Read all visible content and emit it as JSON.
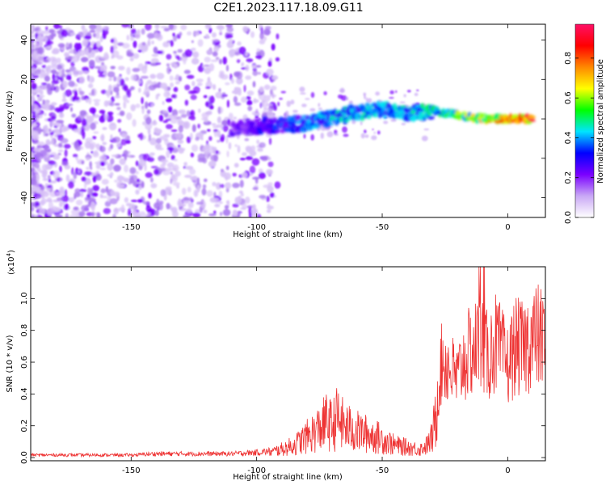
{
  "page": {
    "title": "C2E1.2023.117.18.09.G11"
  },
  "chart_data": [
    {
      "type": "heatmap",
      "title": "C2E1.2023.117.18.09.G11",
      "xlabel": "Height of straight line (km)",
      "ylabel": "Frequency (Hz)",
      "xlim": [
        -190,
        15
      ],
      "ylim": [
        -50,
        48
      ],
      "x_ticks": [
        -150,
        -100,
        -50,
        0
      ],
      "x_tick_labels": [
        "-150",
        "-100",
        "-50",
        "0"
      ],
      "y_ticks": [
        -40,
        -20,
        0,
        20,
        40
      ],
      "y_tick_labels": [
        "-40",
        "-20",
        "0",
        "20",
        "40"
      ],
      "ridge": {
        "description_points_x": [
          -110,
          -100,
          -90,
          -80,
          -70,
          -60,
          -50,
          -40,
          -30,
          -20,
          -10,
          0,
          10
        ],
        "frequency_hz": [
          -5,
          -4,
          -3,
          -2,
          1,
          3,
          5,
          3,
          4,
          2,
          0,
          0,
          0
        ],
        "amplitude": [
          0.25,
          0.3,
          0.35,
          0.4,
          0.45,
          0.45,
          0.45,
          0.45,
          0.5,
          0.6,
          0.7,
          0.8,
          0.95
        ]
      },
      "colorbar": {
        "label": "Normalized spectral amplitude",
        "range": [
          0.0,
          0.97
        ],
        "ticks": [
          0.0,
          0.2,
          0.4,
          0.6,
          0.8
        ],
        "tick_labels": [
          "0.0",
          "0.2",
          "0.4",
          "0.6",
          "0.8"
        ],
        "colormap": [
          "#ffffff",
          "#c9a8f5",
          "#7a00ff",
          "#0000ff",
          "#00e5ff",
          "#00ff00",
          "#ffff00",
          "#ff8800",
          "#ff0000",
          "#ff1066"
        ]
      },
      "grid": false
    },
    {
      "type": "line",
      "xlabel": "Height of straight line (km)",
      "ylabel": "SNR (10 * v/v)",
      "y_multiplier": "(x10",
      "y_multiplier_exp": "4",
      "y_multiplier_close": ")",
      "xlim": [
        -190,
        15
      ],
      "ylim": [
        -0.02,
        1.2
      ],
      "x_ticks": [
        -150,
        -100,
        -50,
        0
      ],
      "x_tick_labels": [
        "-150",
        "-100",
        "-50",
        "0"
      ],
      "y_ticks": [
        0.0,
        0.2,
        0.4,
        0.6,
        0.8,
        1.0
      ],
      "y_tick_labels": [
        "0.0",
        "0.2",
        "0.4",
        "0.6",
        "0.8",
        "1.0"
      ],
      "series": [
        {
          "color": "#ee3333",
          "x": [
            -190,
            -180,
            -170,
            -160,
            -150,
            -140,
            -130,
            -120,
            -110,
            -100,
            -95,
            -90,
            -85,
            -80,
            -75,
            -72,
            -70,
            -68,
            -65,
            -60,
            -55,
            -50,
            -45,
            -40,
            -35,
            -32,
            -30,
            -28,
            -26,
            -24,
            -22,
            -20,
            -18,
            -15,
            -12,
            -10,
            -8,
            -5,
            -2,
            0,
            3,
            6,
            9,
            12,
            15
          ],
          "y": [
            0.02,
            0.02,
            0.02,
            0.02,
            0.02,
            0.03,
            0.03,
            0.03,
            0.03,
            0.04,
            0.05,
            0.08,
            0.12,
            0.2,
            0.28,
            0.35,
            0.3,
            0.38,
            0.3,
            0.25,
            0.22,
            0.18,
            0.12,
            0.1,
            0.08,
            0.12,
            0.2,
            0.5,
            0.75,
            0.7,
            0.65,
            0.6,
            0.72,
            0.8,
            0.85,
            0.9,
            0.75,
            0.88,
            0.78,
            0.7,
            0.85,
            0.82,
            0.9,
            0.92,
            0.88
          ]
        }
      ],
      "grid": false
    }
  ]
}
